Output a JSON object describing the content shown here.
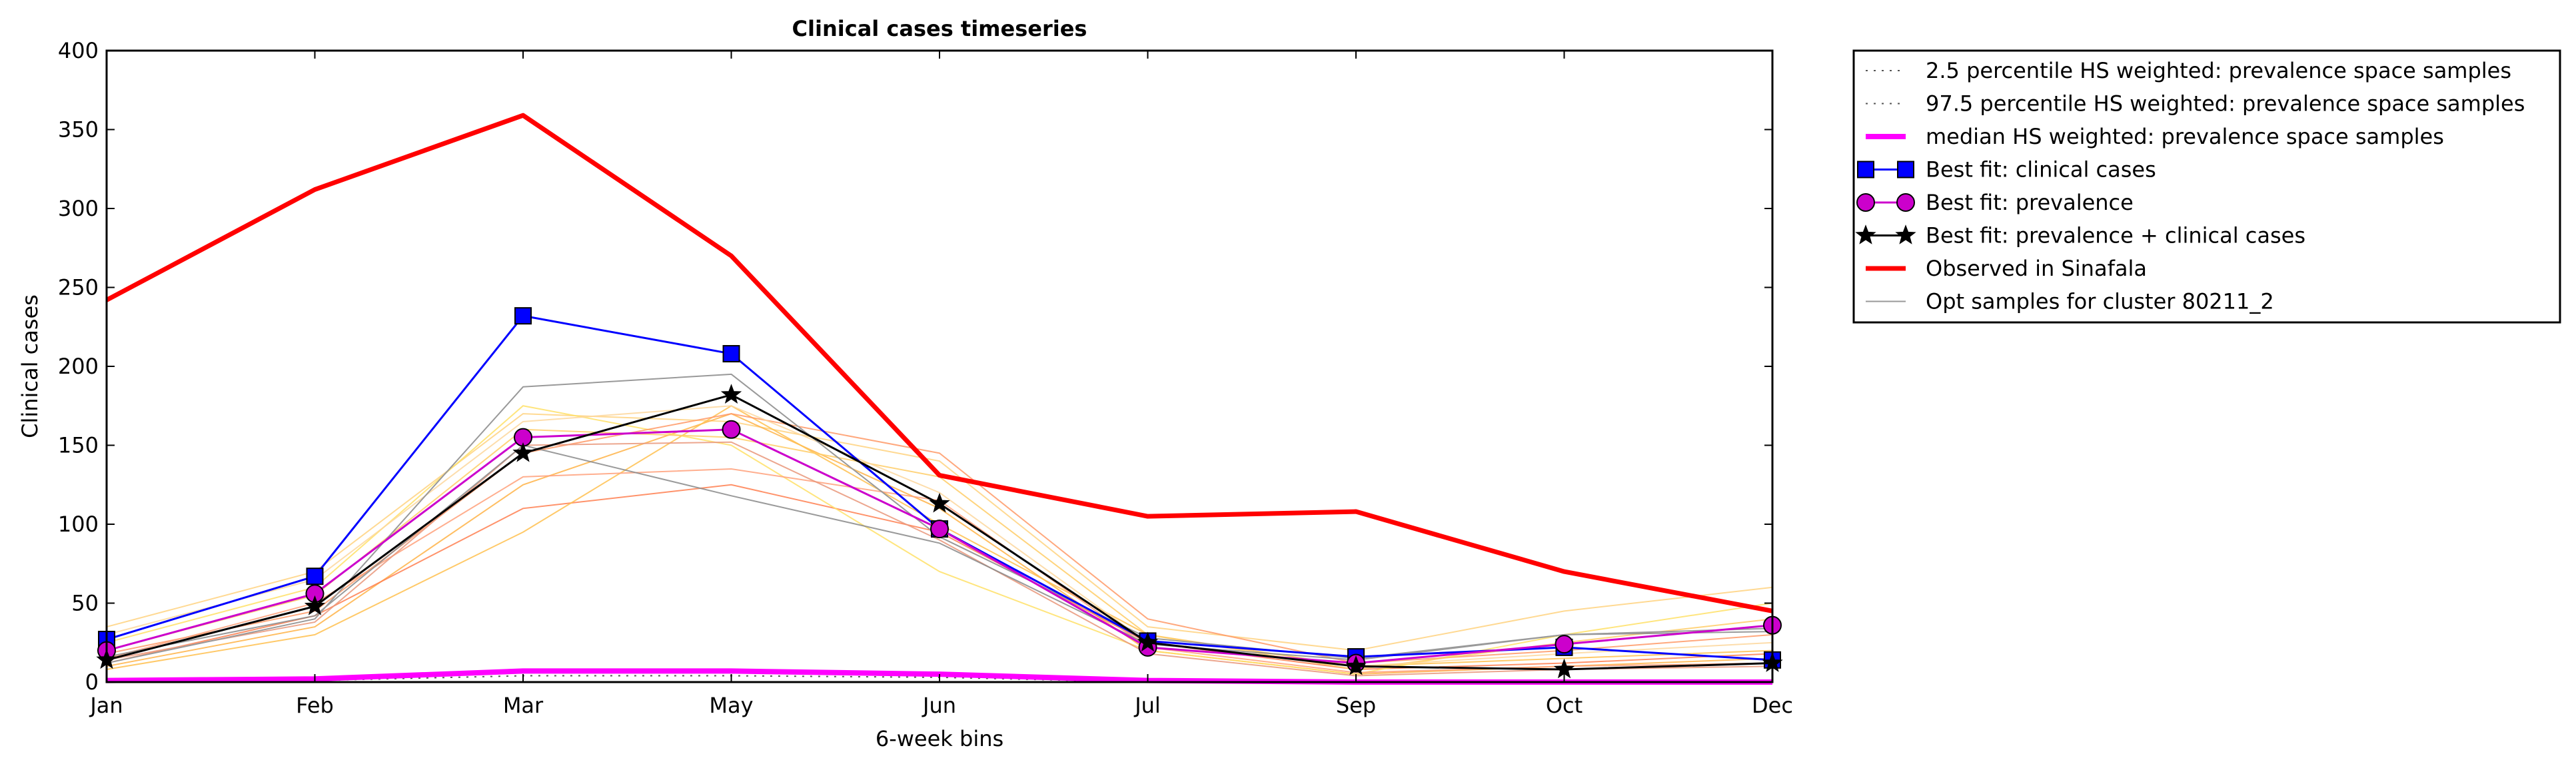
{
  "chart_data": {
    "type": "line",
    "title": "Clinical cases timeseries",
    "xlabel": "6-week bins",
    "ylabel": "Clinical cases",
    "categories": [
      "Jan",
      "Feb",
      "Mar",
      "May",
      "Jun",
      "Jul",
      "Sep",
      "Oct",
      "Dec"
    ],
    "ylim": [
      0,
      400
    ],
    "yticks": [
      0,
      50,
      100,
      150,
      200,
      250,
      300,
      350,
      400
    ],
    "grid": false,
    "legend_position": "outside-top-right",
    "series": [
      {
        "name": "2.5 percentile HS weighted: prevalence space samples",
        "color": "#555555",
        "style": "dotted",
        "marker": "none",
        "width": 2,
        "values": [
          0,
          1,
          4,
          4,
          3,
          0,
          0,
          0,
          0
        ]
      },
      {
        "name": "97.5 percentile HS weighted: prevalence space samples",
        "color": "#555555",
        "style": "dotted",
        "marker": "none",
        "width": 2,
        "values": [
          1,
          2,
          6,
          6,
          4,
          1,
          0,
          0,
          0
        ]
      },
      {
        "name": "median HS weighted: prevalence space samples",
        "color": "#ff00ff",
        "style": "solid",
        "marker": "none",
        "width": 8,
        "values": [
          1,
          2,
          7,
          7,
          5,
          1,
          0,
          0,
          0
        ]
      },
      {
        "name": "Best fit: clinical cases",
        "color": "#0000ff",
        "style": "solid",
        "marker": "square",
        "width": 3,
        "values": [
          27,
          67,
          232,
          208,
          97,
          26,
          16,
          22,
          14
        ]
      },
      {
        "name": "Best fit: prevalence",
        "color": "#cc00cc",
        "style": "solid",
        "marker": "circle",
        "width": 3,
        "values": [
          20,
          56,
          155,
          160,
          97,
          22,
          12,
          24,
          36
        ]
      },
      {
        "name": "Best fit: prevalence + clinical cases",
        "color": "#000000",
        "style": "solid",
        "marker": "star",
        "width": 3,
        "values": [
          14,
          48,
          145,
          182,
          113,
          25,
          10,
          8,
          12
        ]
      },
      {
        "name": "Observed in Sinafala",
        "color": "#ff0000",
        "style": "solid",
        "marker": "none",
        "width": 7,
        "values": [
          242,
          312,
          359,
          270,
          131,
          105,
          108,
          70,
          45
        ]
      },
      {
        "name": "Opt samples for cluster 80211_2",
        "color": "#999999",
        "style": "solid",
        "marker": "none",
        "width": 2,
        "values": [
          12,
          40,
          187,
          195,
          92,
          28,
          15,
          30,
          34
        ]
      }
    ],
    "opt_samples": [
      {
        "color": "#ffd27f",
        "values": [
          35,
          70,
          170,
          165,
          140,
          35,
          20,
          45,
          60
        ]
      },
      {
        "color": "#ffb347",
        "values": [
          10,
          35,
          125,
          170,
          110,
          20,
          5,
          10,
          15
        ]
      },
      {
        "color": "#ff7f50",
        "values": [
          12,
          42,
          110,
          125,
          95,
          25,
          8,
          12,
          18
        ]
      },
      {
        "color": "#ffc04d",
        "values": [
          8,
          30,
          95,
          175,
          100,
          30,
          10,
          15,
          20
        ]
      },
      {
        "color": "#ffe066",
        "values": [
          25,
          60,
          175,
          150,
          70,
          20,
          5,
          30,
          50
        ]
      },
      {
        "color": "#ff9966",
        "values": [
          18,
          45,
          145,
          170,
          145,
          40,
          12,
          20,
          30
        ]
      },
      {
        "color": "#ffa07a",
        "values": [
          15,
          50,
          130,
          135,
          115,
          22,
          6,
          10,
          12
        ]
      },
      {
        "color": "#ffcc66",
        "values": [
          20,
          55,
          160,
          155,
          130,
          30,
          8,
          25,
          40
        ]
      },
      {
        "color": "#e9967a",
        "values": [
          14,
          38,
          150,
          152,
          90,
          18,
          4,
          8,
          10
        ]
      },
      {
        "color": "#fdd79c",
        "values": [
          30,
          65,
          165,
          175,
          120,
          25,
          10,
          18,
          25
        ]
      },
      {
        "color": "#888888",
        "values": [
          16,
          42,
          150,
          118,
          88,
          24,
          14,
          30,
          32
        ]
      }
    ]
  }
}
